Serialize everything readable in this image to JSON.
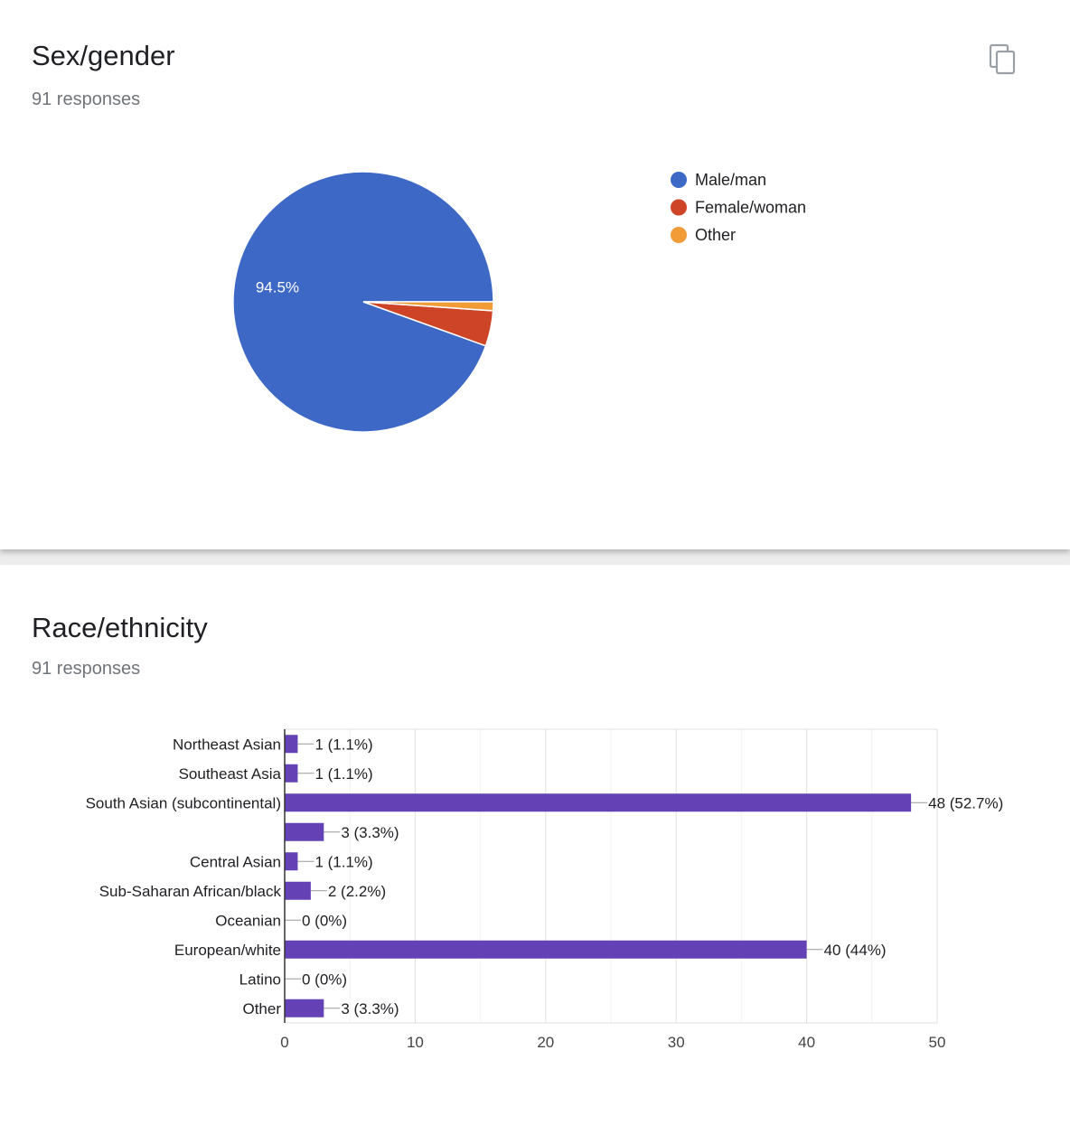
{
  "cards": [
    {
      "title": "Sex/gender",
      "responses": "91 responses",
      "icon": "copy-icon"
    },
    {
      "title": "Race/ethnicity",
      "responses": "91 responses"
    }
  ],
  "chart_data": [
    {
      "type": "pie",
      "categories": [
        "Male/man",
        "Female/woman",
        "Other"
      ],
      "values": [
        86,
        4,
        1
      ],
      "percent_labels": [
        "94.5%",
        "",
        ""
      ],
      "colors": [
        "#3d68c6",
        "#ce4426",
        "#f29c38"
      ],
      "legend_position": "right"
    },
    {
      "type": "bar",
      "orientation": "horizontal",
      "categories": [
        "Northeast Asian",
        "Southeast Asia",
        "South Asian (subcontinental)",
        "",
        "Central Asian",
        "Sub-Saharan African/black",
        "Oceanian",
        "European/white",
        "Latino",
        "Other"
      ],
      "values": [
        1,
        1,
        48,
        3,
        1,
        2,
        0,
        40,
        0,
        3
      ],
      "value_labels": [
        "1 (1.1%)",
        "1 (1.1%)",
        "48 (52.7%)",
        "3 (3.3%)",
        "1 (1.1%)",
        "2 (2.2%)",
        "0 (0%)",
        "40 (44%)",
        "0 (0%)",
        "3 (3.3%)"
      ],
      "xlim": [
        0,
        50
      ],
      "xticks": [
        "0",
        "10",
        "20",
        "30",
        "40",
        "50"
      ],
      "bar_color": "#6441b4",
      "grid": true
    }
  ]
}
